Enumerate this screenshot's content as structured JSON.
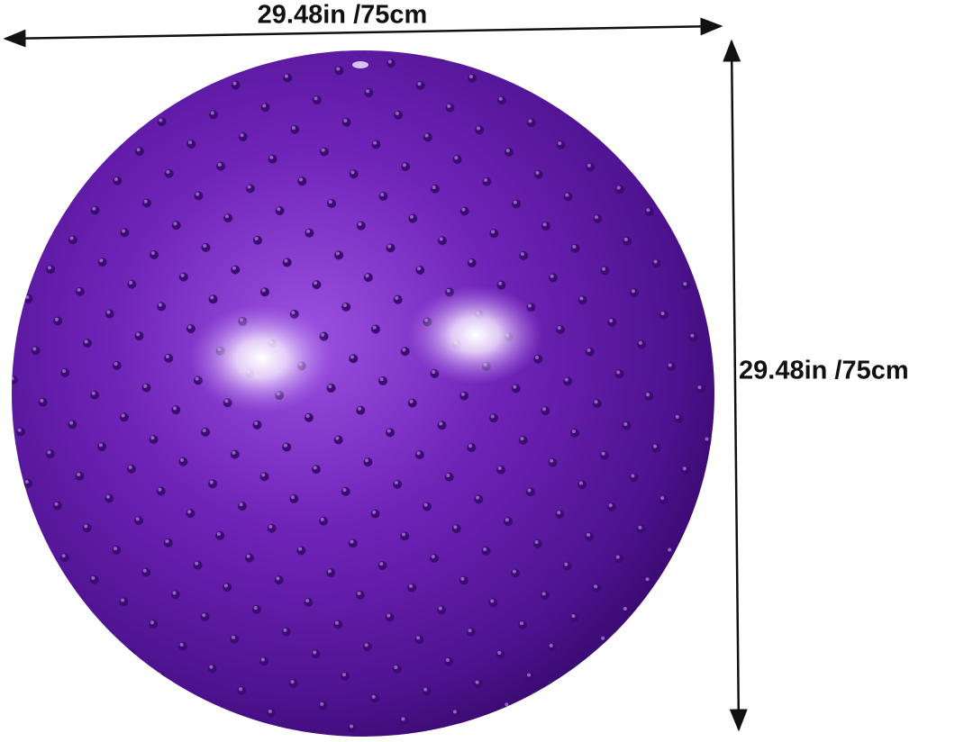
{
  "dimensions": {
    "width_label": "29.48in /75cm",
    "height_label": "29.48in /75cm"
  }
}
